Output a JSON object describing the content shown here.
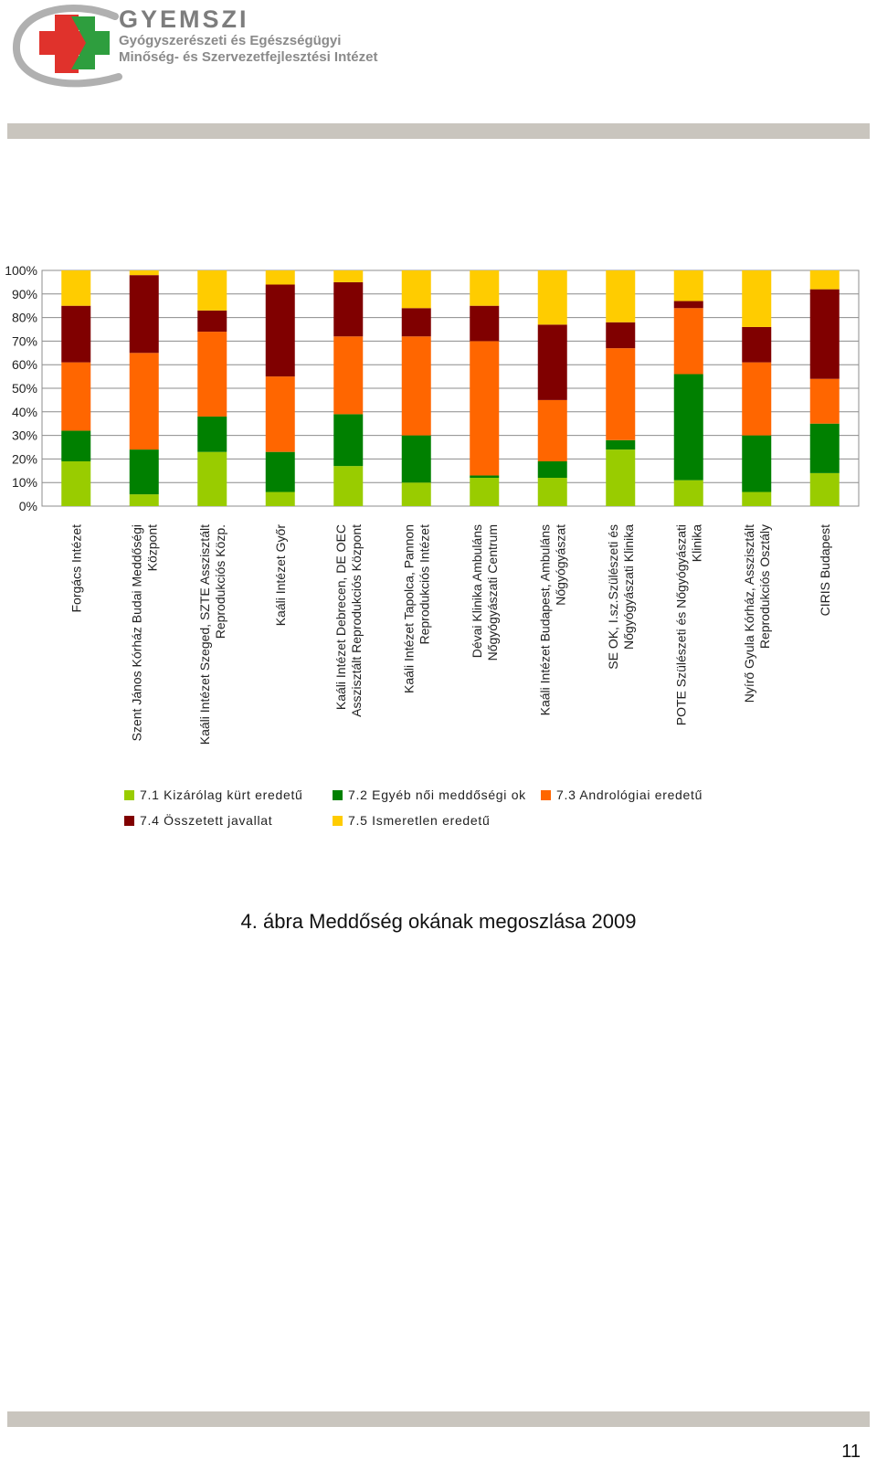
{
  "header": {
    "brand_name": "GYEMSZI",
    "brand_line1": "Gyógyszerészeti és Egészségügyi",
    "brand_line2": "Minőség- és Szervezetfejlesztési Intézet"
  },
  "colors": {
    "c71": "#99cc00",
    "c72": "#008000",
    "c73": "#ff6600",
    "c74": "#800000",
    "c75": "#ffcc00",
    "logo_red": "#e0322c",
    "logo_green": "#2e9e3e",
    "bar_gray": "#c9c5be"
  },
  "chart_data": {
    "type": "bar",
    "stacked": true,
    "percent": true,
    "title": "",
    "xlabel": "",
    "ylabel": "",
    "ylim": [
      0,
      100
    ],
    "grid": true,
    "legend_position": "bottom",
    "y_ticks": [
      "0%",
      "10%",
      "20%",
      "30%",
      "40%",
      "50%",
      "60%",
      "70%",
      "80%",
      "90%",
      "100%"
    ],
    "categories": [
      [
        "Forgács Intézet"
      ],
      [
        "Szent János Kórház Budai Meddőségi",
        "Központ"
      ],
      [
        "Kaáli Intézet Szeged, SZTE Asszisztált",
        "Reprodukciós Közp."
      ],
      [
        "Kaáli Intézet Győr"
      ],
      [
        "Kaáli Intézet Debrecen, DE OEC",
        "Asszisztált Reprodukciós Központ"
      ],
      [
        "Kaáli Intézet Tapolca, Pannon",
        "Reprodukciós Intézet"
      ],
      [
        "Dévai Klinika Ambuláns",
        "Nőgyógyászati Centrum"
      ],
      [
        "Kaáli Intézet Budapest, Ambuláns",
        "Nőgyógyászat"
      ],
      [
        "SE OK, I.sz.Szülészeti és",
        "Nőgyógyászati Klinika"
      ],
      [
        "POTE Szülészeti és Nőgyógyászati",
        "Klinika"
      ],
      [
        "Nyírő Gyula Kórház, Asszisztált",
        "Reprodukciós Osztály"
      ],
      [
        "CIRIS Budapest"
      ]
    ],
    "series": [
      {
        "name": "7.1 Kizárólag kürt eredetű",
        "color": "#99cc00",
        "values": [
          19,
          5,
          23,
          6,
          17,
          10,
          12,
          12,
          24,
          11,
          6,
          14
        ]
      },
      {
        "name": "7.2 Egyéb női meddőségi ok",
        "color": "#008000",
        "values": [
          13,
          19,
          15,
          17,
          22,
          20,
          1,
          7,
          4,
          45,
          24,
          21
        ]
      },
      {
        "name": "7.3 Andrológiai eredetű",
        "color": "#ff6600",
        "values": [
          29,
          41,
          36,
          32,
          33,
          42,
          57,
          26,
          39,
          28,
          31,
          19
        ]
      },
      {
        "name": "7.4 Összetett javallat",
        "color": "#800000",
        "values": [
          24,
          33,
          9,
          39,
          23,
          12,
          15,
          32,
          11,
          3,
          15,
          38
        ]
      },
      {
        "name": "7.5 Ismeretlen eredetű",
        "color": "#ffcc00",
        "values": [
          15,
          2,
          17,
          6,
          5,
          16,
          15,
          23,
          22,
          13,
          24,
          8
        ]
      }
    ]
  },
  "caption": "4. ábra Meddőség okának megoszlása 2009",
  "page_number": "11"
}
